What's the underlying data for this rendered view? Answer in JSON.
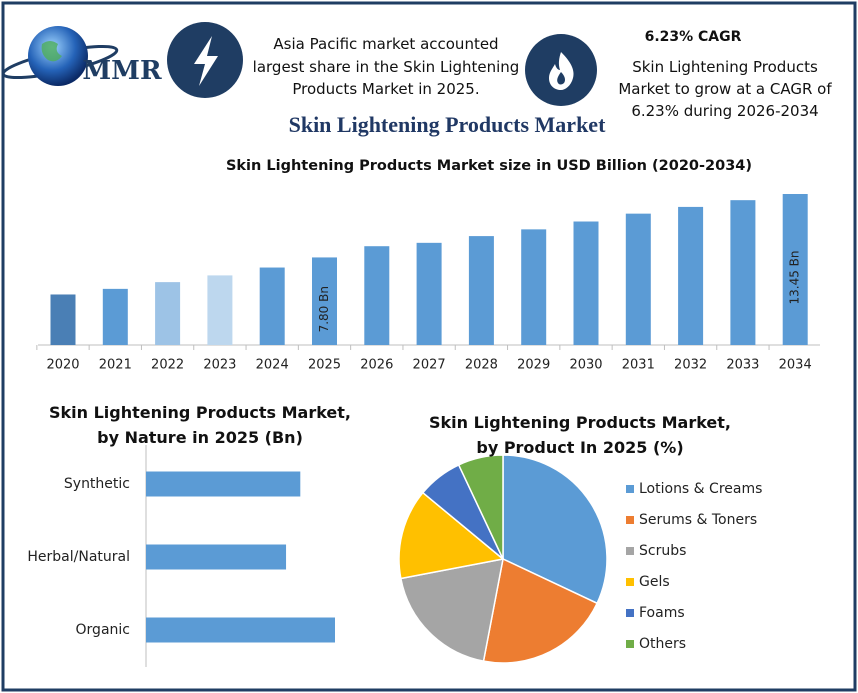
{
  "logo": "MMR",
  "highlight": "Asia Pacific market accounted largest share in the Skin Lightening Products Market in 2025.",
  "cagr": {
    "title": "6.23% CAGR",
    "text": "Skin Lightening Products Market to grow at a CAGR of 6.23% during 2026-2034"
  },
  "title": "Skin Lightening Products Market",
  "chart_data": [
    {
      "type": "bar",
      "title": "Skin Lightening Products Market size in USD Billion (2020-2034)",
      "categories": [
        "2020",
        "2021",
        "2022",
        "2023",
        "2024",
        "2025",
        "2026",
        "2027",
        "2028",
        "2029",
        "2030",
        "2031",
        "2032",
        "2033",
        "2034"
      ],
      "values": [
        4.5,
        5.0,
        5.6,
        6.2,
        6.9,
        7.8,
        8.8,
        9.1,
        9.7,
        10.3,
        11.0,
        11.7,
        12.3,
        12.9,
        13.45
      ],
      "value_labels": [
        null,
        null,
        null,
        null,
        null,
        "7.80 Bn",
        null,
        null,
        null,
        null,
        null,
        null,
        null,
        null,
        "13.45 Bn"
      ],
      "colors": [
        "#4a7fb5",
        "#5b9bd5",
        "#9dc3e6",
        "#bdd7ee",
        "#5b9bd5",
        "#5b9bd5",
        "#5b9bd5",
        "#5b9bd5",
        "#5b9bd5",
        "#5b9bd5",
        "#5b9bd5",
        "#5b9bd5",
        "#5b9bd5",
        "#5b9bd5",
        "#5b9bd5"
      ]
    },
    {
      "type": "barh",
      "title": "Skin Lightening Products Market, by Nature in 2025 (Bn)",
      "categories": [
        "Synthetic",
        "Herbal/Natural",
        "Organic"
      ],
      "values": [
        2.49,
        2.26,
        3.05
      ],
      "color": "#5b9bd5"
    },
    {
      "type": "pie",
      "title": "Skin Lightening Products Market, by Product In 2025 (%)",
      "categories": [
        "Lotions & Creams",
        "Serums & Toners",
        "Scrubs",
        "Gels",
        "Foams",
        "Others"
      ],
      "values": [
        32,
        21,
        19,
        14,
        7,
        7
      ],
      "colors": [
        "#5b9bd5",
        "#ed7d31",
        "#a5a5a5",
        "#ffc000",
        "#4472c4",
        "#70ad47"
      ],
      "legend": "right"
    }
  ]
}
